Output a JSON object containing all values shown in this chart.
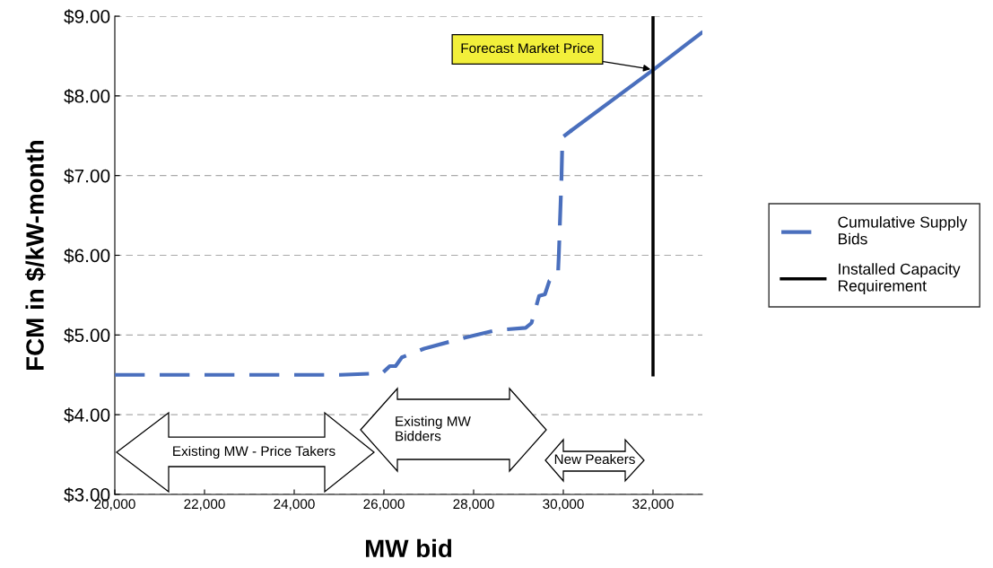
{
  "chart_data": {
    "type": "line",
    "xlabel": "MW bid",
    "ylabel": "FCM in $/kW-month",
    "xlim": [
      20000,
      33100
    ],
    "ylim": [
      3,
      9
    ],
    "xticks": [
      {
        "value": 20000,
        "label": "20,000"
      },
      {
        "value": 22000,
        "label": "22,000"
      },
      {
        "value": 24000,
        "label": "24,000"
      },
      {
        "value": 26000,
        "label": "26,000"
      },
      {
        "value": 28000,
        "label": "28,000"
      },
      {
        "value": 30000,
        "label": "30,000"
      },
      {
        "value": 32000,
        "label": "32,000"
      }
    ],
    "yticks": [
      {
        "value": 3,
        "label": "$3.00"
      },
      {
        "value": 4,
        "label": "$4.00"
      },
      {
        "value": 5,
        "label": "$5.00"
      },
      {
        "value": 6,
        "label": "$6.00"
      },
      {
        "value": 7,
        "label": "$7.00"
      },
      {
        "value": 8,
        "label": "$8.00"
      },
      {
        "value": 9,
        "label": "$9.00"
      }
    ],
    "grid": "y",
    "legend": "right",
    "marker": "none",
    "series": [
      {
        "name": "Cumulative Supply Bids",
        "color": "#4a6fbd",
        "line_style": "dashed",
        "x": [
          20000,
          25030,
          25960,
          26130,
          26260,
          26400,
          26900,
          27830,
          28490,
          29160,
          29290,
          29460,
          29590,
          29690,
          29880,
          29900,
          29960,
          29980,
          30190
        ],
        "values": [
          4.5,
          4.5,
          4.52,
          4.61,
          4.61,
          4.72,
          4.83,
          4.97,
          5.06,
          5.09,
          5.15,
          5.49,
          5.51,
          5.68,
          5.75,
          6.01,
          6.99,
          7.48,
          7.57
        ]
      },
      {
        "color": "#4a6fbd",
        "line_style": "solid",
        "x": [
          30190,
          31990,
          33080
        ],
        "values": [
          7.57,
          8.32,
          8.79
        ]
      },
      {
        "name": "Installed Capacity Requirement",
        "color": "#000000",
        "line_style": "solid",
        "x": [
          32000,
          32000
        ],
        "values": [
          4.5,
          9.0
        ]
      }
    ],
    "annotations": [
      {
        "text": "Forecast Market Price",
        "x": 32000,
        "y": 8.33
      },
      "Existing MW - Price Takers",
      "Existing MW\nBidders",
      "New Peakers"
    ]
  }
}
